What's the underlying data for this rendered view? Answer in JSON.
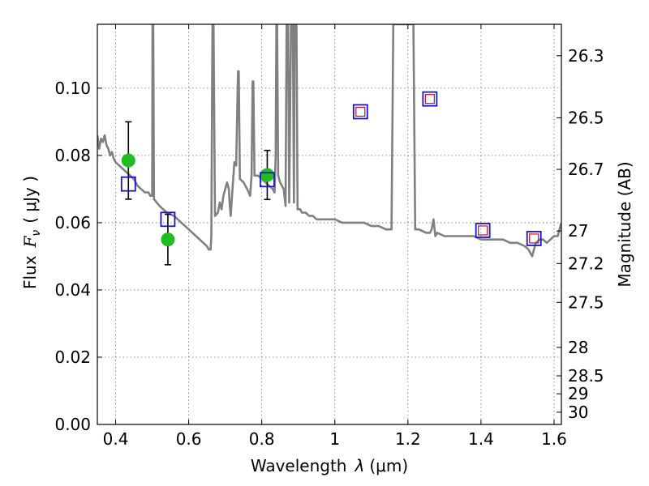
{
  "chart_data": {
    "type": "scatter",
    "xlabel_text": "Wavelength",
    "xlabel_symbol": "λ",
    "xlabel_unit": "(μm)",
    "ylabel_text": "Flux",
    "ylabel_symbol": "F",
    "ylabel_sub": "ν",
    "ylabel_unit": "( μJy )",
    "y2label": "Magnitude (AB)",
    "xlim": [
      0.35,
      1.62
    ],
    "ylim": [
      0.0,
      0.119
    ],
    "grid": true,
    "x_ticks": [
      {
        "value": 0.4,
        "label": "0.4"
      },
      {
        "value": 0.6,
        "label": "0.6"
      },
      {
        "value": 0.8,
        "label": "0.8"
      },
      {
        "value": 1.0,
        "label": "1"
      },
      {
        "value": 1.2,
        "label": "1.2"
      },
      {
        "value": 1.4,
        "label": "1.4"
      },
      {
        "value": 1.6,
        "label": "1.6"
      }
    ],
    "y_ticks": [
      {
        "value": 0.0,
        "label": "0.00"
      },
      {
        "value": 0.02,
        "label": "0.02"
      },
      {
        "value": 0.04,
        "label": "0.04"
      },
      {
        "value": 0.06,
        "label": "0.06"
      },
      {
        "value": 0.08,
        "label": "0.08"
      },
      {
        "value": 0.1,
        "label": "0.10"
      }
    ],
    "y2_ticks": [
      {
        "value": 26.3,
        "label": "26.3"
      },
      {
        "value": 26.5,
        "label": "26.5"
      },
      {
        "value": 26.7,
        "label": "26.7"
      },
      {
        "value": 27.0,
        "label": "27"
      },
      {
        "value": 27.2,
        "label": "27.2"
      },
      {
        "value": 27.5,
        "label": "27.5"
      },
      {
        "value": 28.0,
        "label": "28"
      },
      {
        "value": 28.5,
        "label": "28.5"
      },
      {
        "value": 29.0,
        "label": "29"
      },
      {
        "value": 30.0,
        "label": "30"
      }
    ],
    "series": [
      {
        "kind": "line",
        "color": "#808080",
        "points": [
          [
            0.35,
            0.086
          ],
          [
            0.355,
            0.082
          ],
          [
            0.36,
            0.085
          ],
          [
            0.365,
            0.084
          ],
          [
            0.37,
            0.086
          ],
          [
            0.375,
            0.083
          ],
          [
            0.38,
            0.082
          ],
          [
            0.385,
            0.08
          ],
          [
            0.39,
            0.081
          ],
          [
            0.395,
            0.079
          ],
          [
            0.4,
            0.078
          ],
          [
            0.41,
            0.077
          ],
          [
            0.42,
            0.076
          ],
          [
            0.43,
            0.075
          ],
          [
            0.44,
            0.074
          ],
          [
            0.45,
            0.073
          ],
          [
            0.46,
            0.071
          ],
          [
            0.47,
            0.07
          ],
          [
            0.48,
            0.069
          ],
          [
            0.49,
            0.069
          ],
          [
            0.495,
            0.068
          ],
          [
            0.5,
            0.068
          ],
          [
            0.501,
            0.119
          ],
          [
            0.503,
            0.119
          ],
          [
            0.505,
            0.067
          ],
          [
            0.52,
            0.065
          ],
          [
            0.54,
            0.063
          ],
          [
            0.56,
            0.062
          ],
          [
            0.58,
            0.06
          ],
          [
            0.6,
            0.058
          ],
          [
            0.62,
            0.056
          ],
          [
            0.64,
            0.054
          ],
          [
            0.65,
            0.053
          ],
          [
            0.655,
            0.052
          ],
          [
            0.66,
            0.052
          ],
          [
            0.662,
            0.056
          ],
          [
            0.665,
            0.119
          ],
          [
            0.668,
            0.119
          ],
          [
            0.672,
            0.062
          ],
          [
            0.68,
            0.063
          ],
          [
            0.685,
            0.066
          ],
          [
            0.69,
            0.064
          ],
          [
            0.695,
            0.068
          ],
          [
            0.7,
            0.07
          ],
          [
            0.705,
            0.072
          ],
          [
            0.71,
            0.07
          ],
          [
            0.712,
            0.066
          ],
          [
            0.715,
            0.062
          ],
          [
            0.72,
            0.07
          ],
          [
            0.725,
            0.078
          ],
          [
            0.73,
            0.077
          ],
          [
            0.735,
            0.105
          ],
          [
            0.737,
            0.105
          ],
          [
            0.74,
            0.073
          ],
          [
            0.75,
            0.072
          ],
          [
            0.76,
            0.07
          ],
          [
            0.768,
            0.068
          ],
          [
            0.772,
            0.074
          ],
          [
            0.775,
            0.102
          ],
          [
            0.777,
            0.102
          ],
          [
            0.78,
            0.074
          ],
          [
            0.79,
            0.074
          ],
          [
            0.8,
            0.073
          ],
          [
            0.81,
            0.072
          ],
          [
            0.82,
            0.071
          ],
          [
            0.83,
            0.07
          ],
          [
            0.835,
            0.069
          ],
          [
            0.838,
            0.08
          ],
          [
            0.84,
            0.119
          ],
          [
            0.842,
            0.119
          ],
          [
            0.845,
            0.074
          ],
          [
            0.85,
            0.072
          ],
          [
            0.86,
            0.07
          ],
          [
            0.865,
            0.065
          ],
          [
            0.868,
            0.119
          ],
          [
            0.872,
            0.119
          ],
          [
            0.875,
            0.066
          ],
          [
            0.88,
            0.119
          ],
          [
            0.885,
            0.119
          ],
          [
            0.888,
            0.066
          ],
          [
            0.89,
            0.119
          ],
          [
            0.895,
            0.119
          ],
          [
            0.898,
            0.064
          ],
          [
            0.905,
            0.064
          ],
          [
            0.91,
            0.063
          ],
          [
            0.92,
            0.063
          ],
          [
            0.93,
            0.062
          ],
          [
            0.94,
            0.062
          ],
          [
            0.95,
            0.061
          ],
          [
            0.96,
            0.061
          ],
          [
            0.97,
            0.061
          ],
          [
            0.98,
            0.061
          ],
          [
            1.0,
            0.061
          ],
          [
            1.02,
            0.06
          ],
          [
            1.04,
            0.06
          ],
          [
            1.06,
            0.06
          ],
          [
            1.08,
            0.06
          ],
          [
            1.1,
            0.059
          ],
          [
            1.12,
            0.059
          ],
          [
            1.14,
            0.058
          ],
          [
            1.155,
            0.058
          ],
          [
            1.16,
            0.119
          ],
          [
            1.215,
            0.119
          ],
          [
            1.22,
            0.058
          ],
          [
            1.23,
            0.058
          ],
          [
            1.25,
            0.057
          ],
          [
            1.26,
            0.057
          ],
          [
            1.265,
            0.058
          ],
          [
            1.27,
            0.061
          ],
          [
            1.275,
            0.056
          ],
          [
            1.28,
            0.057
          ],
          [
            1.3,
            0.056
          ],
          [
            1.32,
            0.056
          ],
          [
            1.34,
            0.056
          ],
          [
            1.36,
            0.056
          ],
          [
            1.38,
            0.056
          ],
          [
            1.4,
            0.055
          ],
          [
            1.42,
            0.055
          ],
          [
            1.44,
            0.055
          ],
          [
            1.46,
            0.055
          ],
          [
            1.48,
            0.054
          ],
          [
            1.5,
            0.054
          ],
          [
            1.52,
            0.053
          ],
          [
            1.53,
            0.052
          ],
          [
            1.535,
            0.051
          ],
          [
            1.54,
            0.05
          ],
          [
            1.545,
            0.052
          ],
          [
            1.55,
            0.054
          ],
          [
            1.56,
            0.055
          ],
          [
            1.57,
            0.055
          ],
          [
            1.58,
            0.054
          ],
          [
            1.59,
            0.055
          ],
          [
            1.6,
            0.056
          ],
          [
            1.61,
            0.056
          ],
          [
            1.615,
            0.058
          ],
          [
            1.62,
            0.06
          ]
        ]
      },
      {
        "kind": "points",
        "marker": "circle",
        "color": "#22bb22",
        "points": [
          {
            "x": 0.435,
            "y": 0.0785,
            "yerr": 0.0115
          },
          {
            "x": 0.543,
            "y": 0.055,
            "yerr": 0.0075
          },
          {
            "x": 0.815,
            "y": 0.0742,
            "yerr": 0.0073
          }
        ]
      },
      {
        "kind": "points",
        "marker": "square-open",
        "color": "#1515d0",
        "points": [
          {
            "x": 0.435,
            "y": 0.0715
          },
          {
            "x": 0.543,
            "y": 0.061
          },
          {
            "x": 0.815,
            "y": 0.0728
          },
          {
            "x": 1.07,
            "y": 0.093
          },
          {
            "x": 1.26,
            "y": 0.0968
          },
          {
            "x": 1.405,
            "y": 0.0577
          },
          {
            "x": 1.545,
            "y": 0.0553
          }
        ]
      },
      {
        "kind": "points",
        "marker": "square-small-open",
        "color": "#cc1111",
        "points": [
          {
            "x": 1.07,
            "y": 0.093
          },
          {
            "x": 1.26,
            "y": 0.0968
          },
          {
            "x": 1.405,
            "y": 0.0577
          },
          {
            "x": 1.545,
            "y": 0.0553
          }
        ]
      }
    ]
  }
}
